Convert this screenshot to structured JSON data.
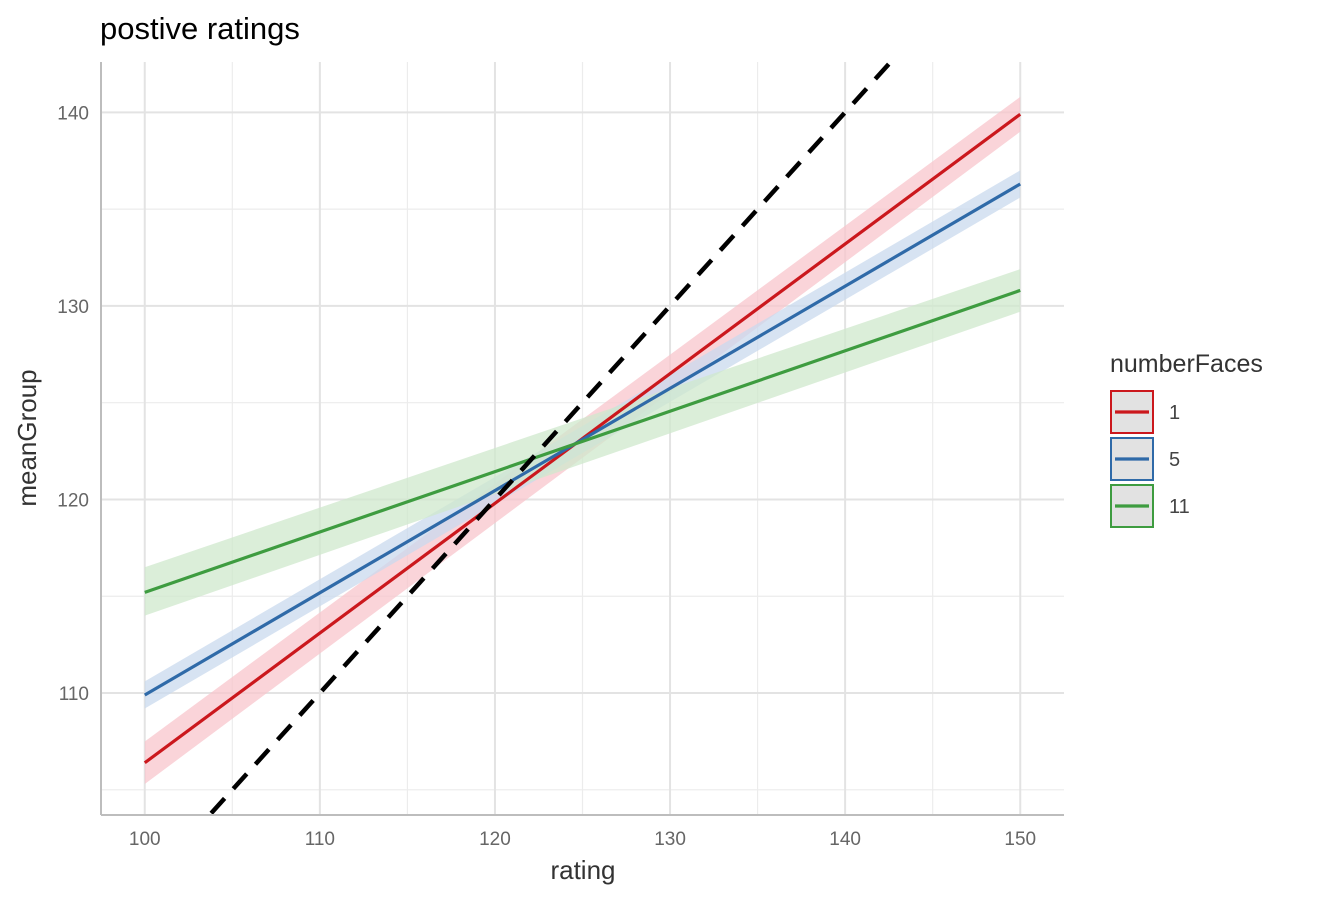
{
  "chart_data": {
    "type": "line",
    "title": "postive ratings",
    "xlabel": "rating",
    "ylabel": "meanGroup",
    "xlim": [
      97.5,
      152.5
    ],
    "ylim": [
      103.7,
      142.6
    ],
    "x_ticks": [
      100,
      110,
      120,
      130,
      140,
      150
    ],
    "x_tick_labels": [
      "100",
      "110",
      "120",
      "130",
      "140",
      "150"
    ],
    "y_ticks": [
      110,
      120,
      130,
      140
    ],
    "y_tick_labels": [
      "110",
      "120",
      "130",
      "140"
    ],
    "grid": true,
    "legend": {
      "title": "numberFaces",
      "position": "right"
    },
    "series": [
      {
        "name": "1",
        "color": "#cb181d",
        "band_color": "#f8c6cc",
        "x": [
          100,
          150
        ],
        "y": [
          106.4,
          139.9
        ],
        "lower": [
          105.3,
          139.0
        ],
        "upper": [
          107.5,
          140.8
        ]
      },
      {
        "name": "5",
        "color": "#2f6aa8",
        "band_color": "#c9d9ee",
        "x": [
          100,
          150
        ],
        "y": [
          109.9,
          136.3
        ],
        "lower": [
          109.2,
          135.6
        ],
        "upper": [
          110.6,
          137.0
        ]
      },
      {
        "name": "11",
        "color": "#3e9c40",
        "band_color": "#cfe8cc",
        "x": [
          100,
          150
        ],
        "y": [
          115.2,
          130.8
        ],
        "lower": [
          114.0,
          129.7
        ],
        "upper": [
          116.5,
          131.9
        ]
      }
    ],
    "reference_line": {
      "style": "dashed",
      "color": "#000000",
      "x": [
        100,
        155
      ],
      "y": [
        100,
        155
      ]
    }
  }
}
